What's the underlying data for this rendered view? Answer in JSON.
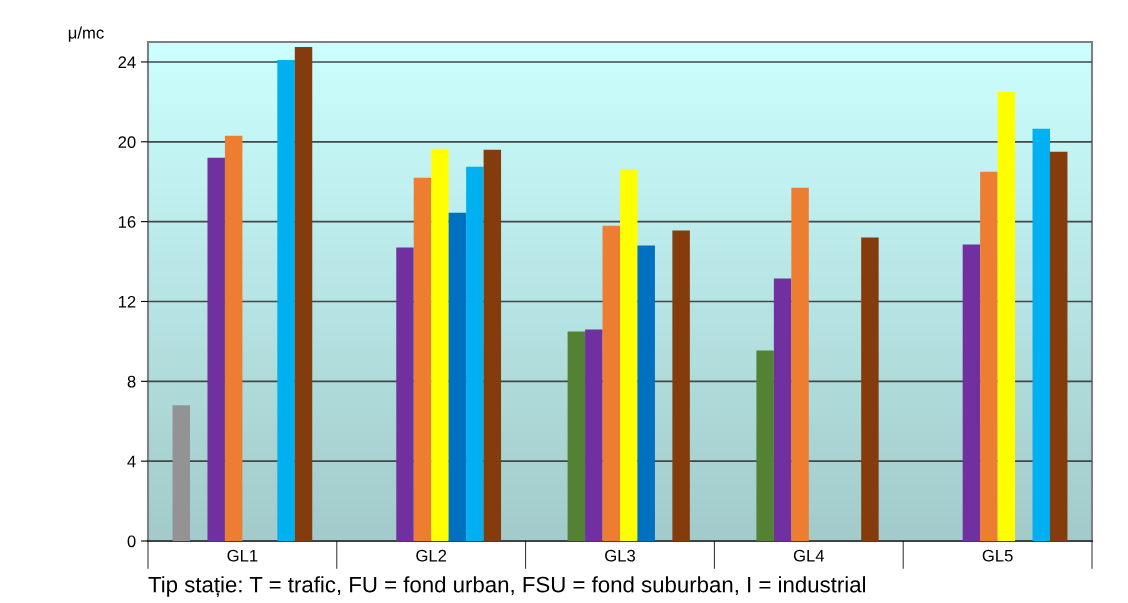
{
  "chart_data": {
    "type": "bar",
    "ylabel": "μ/mc",
    "categories": [
      "GL1",
      "GL2",
      "GL3",
      "GL4",
      "GL5"
    ],
    "series": [
      {
        "color": "#939393",
        "values": [
          6.8,
          null,
          null,
          null,
          null
        ]
      },
      {
        "color": "#548235",
        "values": [
          null,
          null,
          10.5,
          9.55,
          null
        ]
      },
      {
        "color": "#7030a0",
        "values": [
          19.2,
          14.7,
          10.6,
          13.15,
          14.85
        ]
      },
      {
        "color": "#ed7d31",
        "values": [
          20.3,
          18.2,
          15.8,
          17.7,
          18.5
        ]
      },
      {
        "color": "#ffff00",
        "values": [
          null,
          19.65,
          18.6,
          null,
          22.5
        ]
      },
      {
        "color": "#0070c0",
        "values": [
          null,
          16.45,
          14.8,
          null,
          null
        ]
      },
      {
        "color": "#00b0f0",
        "values": [
          24.1,
          18.75,
          null,
          null,
          20.65
        ]
      },
      {
        "color": "#843c0c",
        "values": [
          24.75,
          19.6,
          15.55,
          15.2,
          19.5
        ]
      }
    ],
    "ylim": [
      0,
      25
    ],
    "yticks": [
      0,
      4,
      8,
      12,
      16,
      20,
      24
    ],
    "grid": "y",
    "legend": false,
    "annotations": [
      "Tip stație: T = trafic, FU = fond urban, FSU = fond suburban, I = industrial"
    ]
  }
}
